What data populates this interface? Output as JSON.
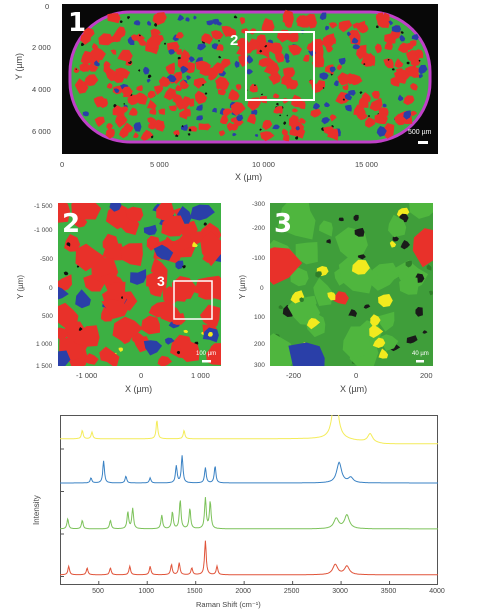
{
  "panel1": {
    "number": "1",
    "inset_label": "2",
    "ylabel": "Y (µm)",
    "xlabel": "X (µm)",
    "yticks": [
      "0",
      "2 000",
      "4 000",
      "6 000"
    ],
    "xticks": [
      "0",
      "5 000",
      "10 000",
      "15 000"
    ],
    "scalebar": "500 µm"
  },
  "panel2": {
    "number": "2",
    "inset_label": "3",
    "ylabel": "Y (µm)",
    "xlabel": "X (µm)",
    "yticks": [
      "-1 500",
      "-1 000",
      "-500",
      "0",
      "500",
      "1 000",
      "1 500"
    ],
    "xticks": [
      "-1 000",
      "0",
      "1 000"
    ],
    "scalebar": "100 µm"
  },
  "panel3": {
    "number": "3",
    "ylabel": "Y (µm)",
    "xlabel": "X (µm)",
    "yticks": [
      "-300",
      "-200",
      "-100",
      "0",
      "100",
      "200",
      "300"
    ],
    "xticks": [
      "-200",
      "0",
      "200"
    ],
    "scalebar": "40 µm"
  },
  "colors": {
    "green": "#3cb043",
    "red": "#e8312a",
    "blue": "#2a3fa8",
    "yellow": "#f2ea1e",
    "magenta": "#c040c8",
    "spec_yellow": "#f4ec5a",
    "spec_blue": "#3a82c4",
    "spec_green": "#7cc25a",
    "spec_red": "#e0543a"
  },
  "chart_data": {
    "type": "line",
    "xlabel": "Raman Shift (cm⁻¹)",
    "ylabel": "Intensity",
    "xlim": [
      100,
      4000
    ],
    "xticks": [
      "500",
      "1000",
      "1500",
      "2000",
      "2500",
      "3000",
      "3500",
      "4000"
    ],
    "series": [
      {
        "color": "#f4ec5a",
        "baseline": 0.86,
        "peaks": [
          [
            330,
            0.05
          ],
          [
            430,
            0.04
          ],
          [
            1100,
            0.11
          ],
          [
            1380,
            0.05
          ],
          [
            2940,
            0.32
          ],
          [
            3300,
            0.05
          ]
        ]
      },
      {
        "color": "#3a82c4",
        "baseline": 0.6,
        "peaks": [
          [
            420,
            0.03
          ],
          [
            550,
            0.13
          ],
          [
            780,
            0.04
          ],
          [
            1030,
            0.03
          ],
          [
            1300,
            0.1
          ],
          [
            1360,
            0.16
          ],
          [
            1600,
            0.09
          ],
          [
            1700,
            0.1
          ],
          [
            2980,
            0.12
          ],
          [
            3100,
            0.03
          ]
        ]
      },
      {
        "color": "#7cc25a",
        "baseline": 0.33,
        "peaks": [
          [
            180,
            0.06
          ],
          [
            330,
            0.05
          ],
          [
            620,
            0.05
          ],
          [
            800,
            0.1
          ],
          [
            850,
            0.12
          ],
          [
            1150,
            0.08
          ],
          [
            1260,
            0.1
          ],
          [
            1340,
            0.17
          ],
          [
            1440,
            0.12
          ],
          [
            1600,
            0.18
          ],
          [
            1650,
            0.16
          ],
          [
            2950,
            0.06
          ],
          [
            3060,
            0.08
          ]
        ]
      },
      {
        "color": "#e0543a",
        "baseline": 0.06,
        "peaks": [
          [
            190,
            0.05
          ],
          [
            380,
            0.04
          ],
          [
            620,
            0.04
          ],
          [
            820,
            0.05
          ],
          [
            1030,
            0.05
          ],
          [
            1250,
            0.06
          ],
          [
            1330,
            0.07
          ],
          [
            1460,
            0.04
          ],
          [
            1600,
            0.2
          ],
          [
            1720,
            0.05
          ],
          [
            2940,
            0.06
          ],
          [
            3060,
            0.05
          ]
        ]
      }
    ]
  }
}
